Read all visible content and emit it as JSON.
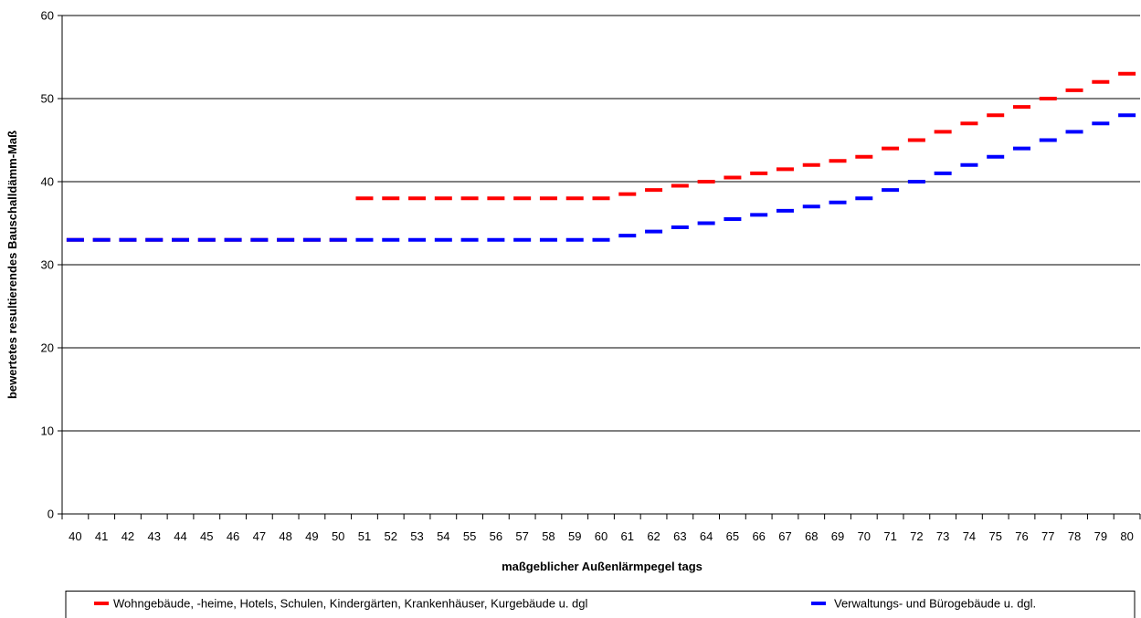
{
  "chart_data": {
    "type": "line",
    "title": "",
    "xlabel": "maßgeblicher Außenlärmpegel tags",
    "ylabel": "bewertetes resultierendes Bauschalldämm-Maß",
    "ylim": [
      0,
      60
    ],
    "yticks": [
      0,
      10,
      20,
      30,
      40,
      50,
      60
    ],
    "grid": true,
    "legend_position": "bottom",
    "x": [
      40,
      41,
      42,
      43,
      44,
      45,
      46,
      47,
      48,
      49,
      50,
      51,
      52,
      53,
      54,
      55,
      56,
      57,
      58,
      59,
      60,
      61,
      62,
      63,
      64,
      65,
      66,
      67,
      68,
      69,
      70,
      71,
      72,
      73,
      74,
      75,
      76,
      77,
      78,
      79,
      80
    ],
    "series": [
      {
        "name": "Wohngebäude, -heime, Hotels, Schulen, Kindergärten, Krankenhäuser, Kurgebäude u. dgl",
        "color": "#ff0000",
        "values": [
          33,
          33,
          33,
          33,
          33,
          33,
          33,
          33,
          33,
          33,
          33,
          38,
          38,
          38,
          38,
          38,
          38,
          38,
          38,
          38,
          38,
          38.5,
          39,
          39.5,
          40,
          40.5,
          41,
          41.5,
          42,
          42.5,
          43,
          44,
          45,
          46,
          47,
          48,
          49,
          50,
          51,
          52,
          53
        ]
      },
      {
        "name": "Verwaltungs- und Bürogebäude u. dgl.",
        "color": "#0000ff",
        "values": [
          33,
          33,
          33,
          33,
          33,
          33,
          33,
          33,
          33,
          33,
          33,
          33,
          33,
          33,
          33,
          33,
          33,
          33,
          33,
          33,
          33,
          33.5,
          34,
          34.5,
          35,
          35.5,
          36,
          36.5,
          37,
          37.5,
          38,
          39,
          40,
          41,
          42,
          43,
          44,
          45,
          46,
          47,
          48
        ]
      }
    ]
  }
}
